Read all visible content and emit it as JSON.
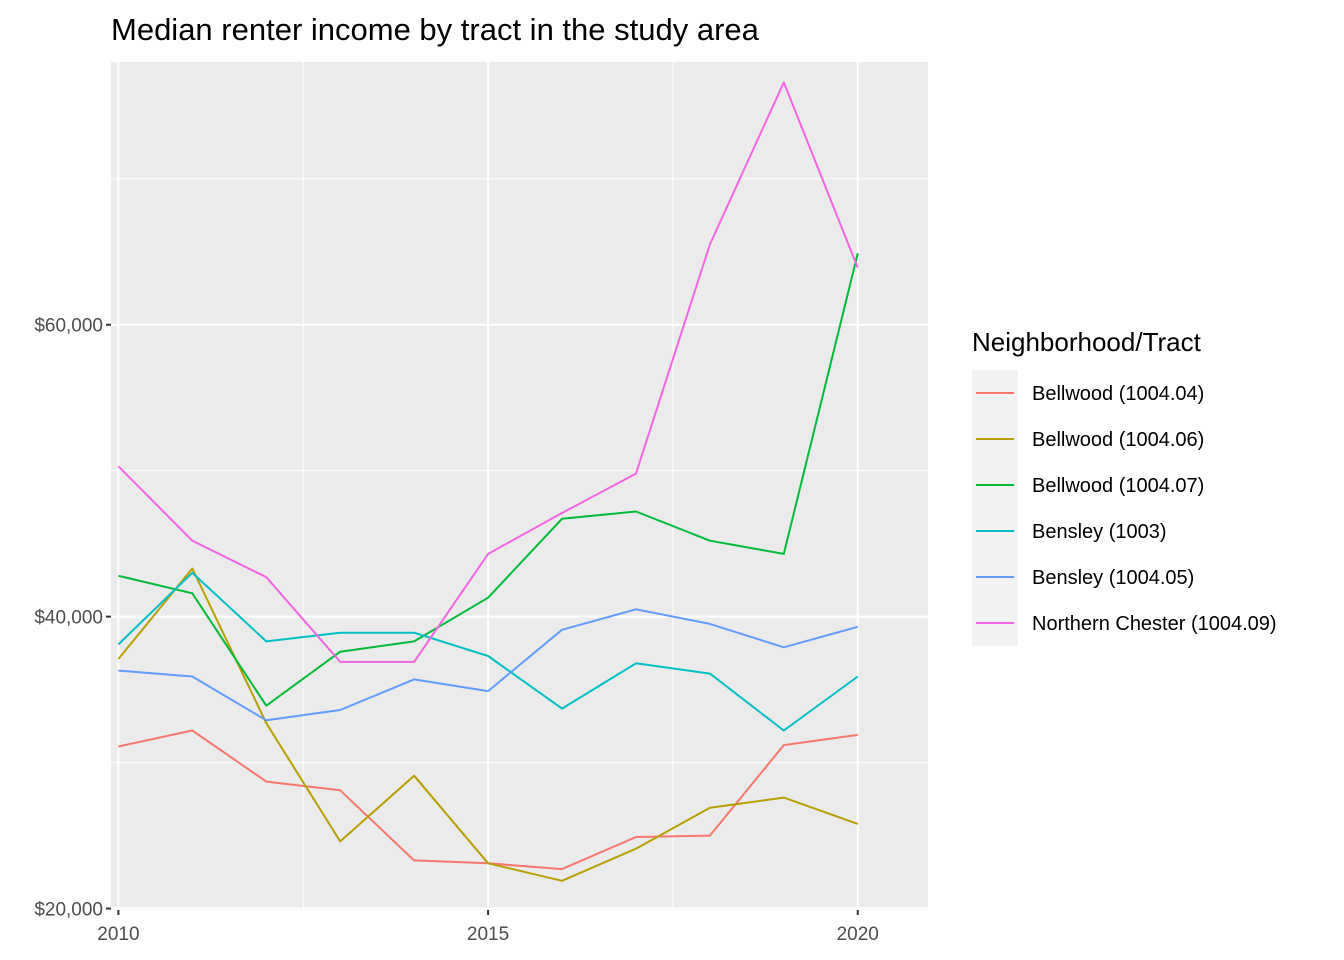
{
  "chart_data": {
    "type": "line",
    "title": "Median renter income by tract in the study area",
    "xlabel": "",
    "ylabel": "",
    "xlim": [
      2009.9,
      2020.95
    ],
    "ylim": [
      19900,
      78000
    ],
    "x": [
      2010,
      2011,
      2012,
      2013,
      2014,
      2015,
      2016,
      2017,
      2018,
      2019,
      2020
    ],
    "x_ticks": [
      2010,
      2015,
      2020
    ],
    "x_tick_labels": [
      "2010",
      "2015",
      "2020"
    ],
    "y_ticks": [
      20000,
      40000,
      60000
    ],
    "y_tick_labels": [
      "$20,000",
      "$40,000",
      "$60,000"
    ],
    "grid": true,
    "legend": {
      "title": "Neighborhood/Tract",
      "position": "right"
    },
    "series": [
      {
        "name": "Bellwood (1004.04)",
        "color": "#F8766D",
        "values": [
          31100,
          32200,
          28700,
          28100,
          23300,
          23100,
          22700,
          24900,
          25000,
          31200,
          31900
        ]
      },
      {
        "name": "Bellwood (1004.06)",
        "color": "#B79F00",
        "values": [
          37100,
          43300,
          32700,
          24600,
          29100,
          23100,
          21900,
          24100,
          26900,
          27600,
          25800
        ]
      },
      {
        "name": "Bellwood (1004.07)",
        "color": "#00BA38",
        "values": [
          42800,
          41600,
          33900,
          37600,
          38300,
          41300,
          46700,
          47200,
          45200,
          44300,
          64900
        ]
      },
      {
        "name": "Bensley (1003)",
        "color": "#00BFC4",
        "values": [
          38100,
          43000,
          38300,
          38900,
          38900,
          37300,
          33700,
          36800,
          36100,
          32200,
          35900
        ]
      },
      {
        "name": "Bensley (1004.05)",
        "color": "#619CFF",
        "values": [
          36300,
          35900,
          32900,
          33600,
          35700,
          34900,
          39100,
          40500,
          39500,
          37900,
          39300
        ]
      },
      {
        "name": "Northern Chester (1004.09)",
        "color": "#F564E3",
        "values": [
          50300,
          45200,
          42700,
          36900,
          36900,
          44300,
          47100,
          49800,
          65500,
          76600,
          63900
        ]
      }
    ]
  }
}
